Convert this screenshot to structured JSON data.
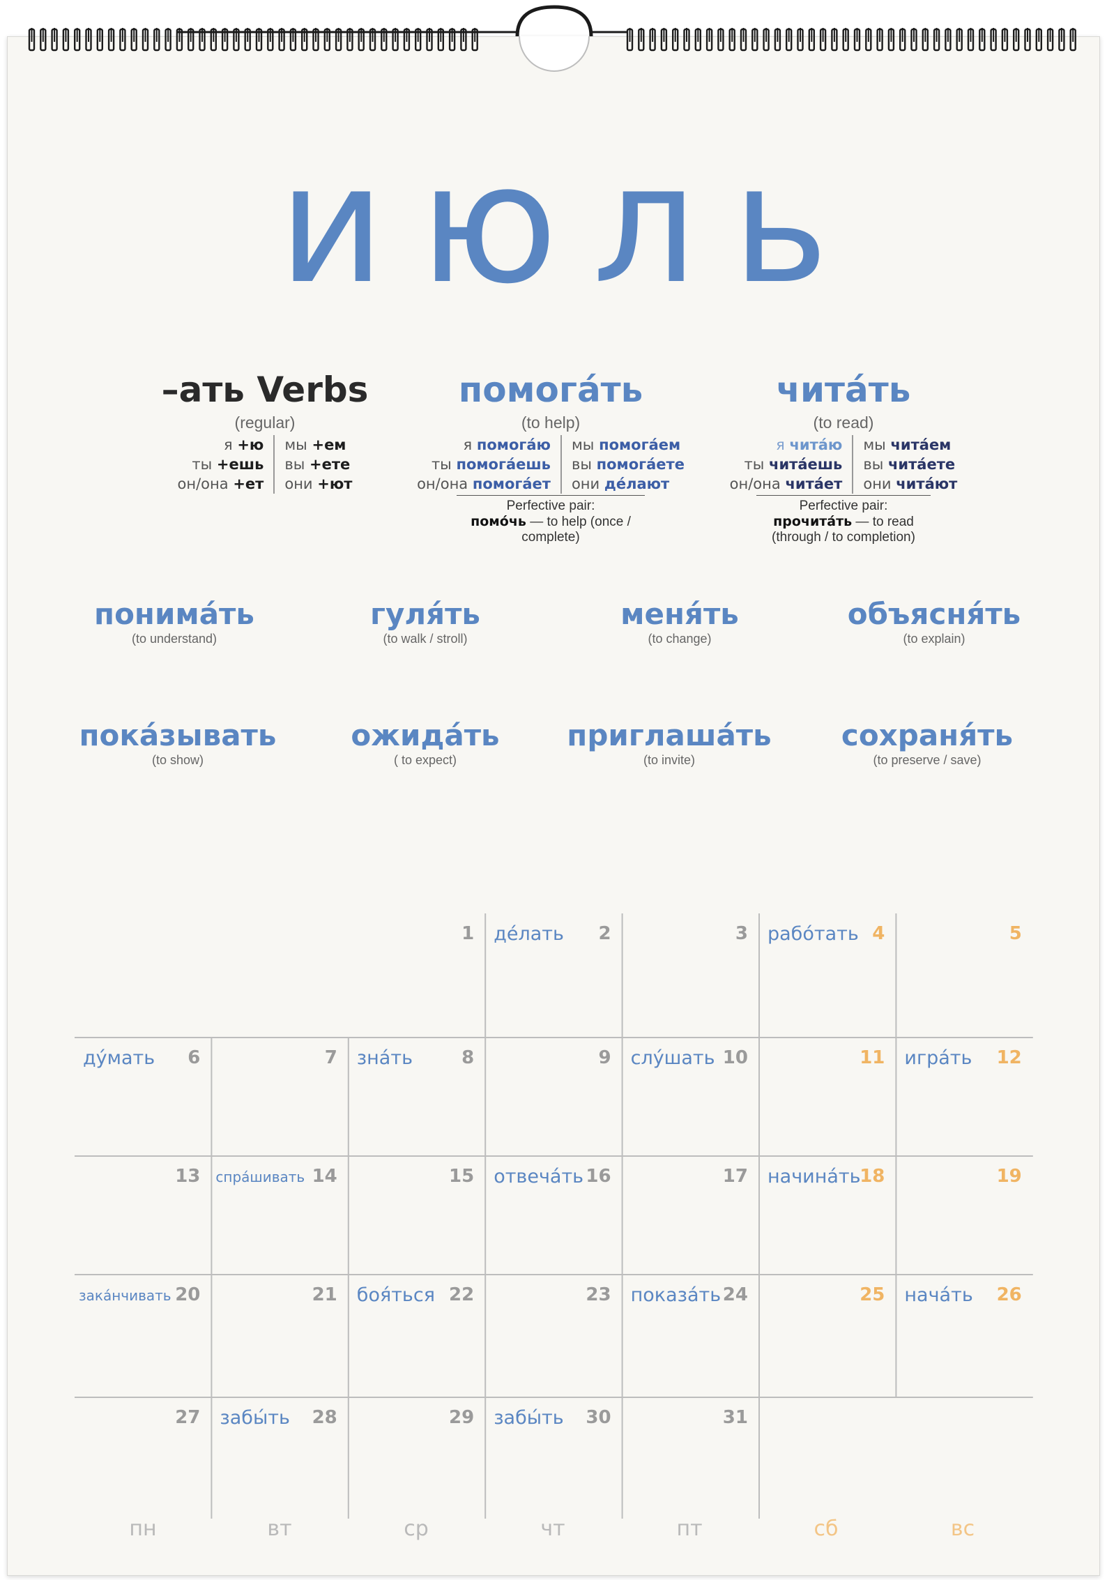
{
  "month_title": "июль",
  "colors": {
    "accent": "#5a86c2",
    "weekend": "#f0b463",
    "day_number": "#9a9a9a"
  },
  "conjugation_blocks": [
    {
      "title": "–ать Verbs",
      "subtitle": "(regular)",
      "rows": [
        {
          "sg_pron": "я",
          "sg_form": "+ю",
          "pl_pron": "мы",
          "pl_form": "+ем"
        },
        {
          "sg_pron": "ты",
          "sg_form": "+ешь",
          "pl_pron": "вы",
          "pl_form": "+ете"
        },
        {
          "sg_pron": "он/она",
          "sg_form": "+ет",
          "pl_pron": "они",
          "pl_form": "+ют"
        }
      ]
    },
    {
      "title": "помога́ть",
      "subtitle": "(to help)",
      "rows": [
        {
          "sg_pron": "я",
          "sg_form": "помога́ю",
          "pl_pron": "мы",
          "pl_form": "помога́ем"
        },
        {
          "sg_pron": "ты",
          "sg_form": "помога́ешь",
          "pl_pron": "вы",
          "pl_form": "помога́ете"
        },
        {
          "sg_pron": "он/она",
          "sg_form": "помога́ет",
          "pl_pron": "они",
          "pl_form": "де́лают"
        }
      ],
      "pair_label": "Perfective pair:",
      "pair_verb": "помо́чь",
      "pair_text": " — to help (once / complete)"
    },
    {
      "title": "чита́ть",
      "subtitle": "(to read)",
      "rows": [
        {
          "sg_pron": "я",
          "sg_form": "чита́ю",
          "pl_pron": "мы",
          "pl_form": "чита́ем"
        },
        {
          "sg_pron": "ты",
          "sg_form": "чита́ешь",
          "pl_pron": "вы",
          "pl_form": "чита́ете"
        },
        {
          "sg_pron": "он/она",
          "sg_form": "чита́ет",
          "pl_pron": "они",
          "pl_form": "чита́ют"
        }
      ],
      "pair_label": "Perfective pair:",
      "pair_verb": "прочита́ть",
      "pair_text": " — to read (through / to completion)"
    }
  ],
  "vocab": [
    {
      "verb": "понима́ть",
      "translation": "(to understand)"
    },
    {
      "verb": "гуля́ть",
      "translation": "(to walk / stroll)"
    },
    {
      "verb": "меня́ть",
      "translation": "(to change)"
    },
    {
      "verb": "объясня́ть",
      "translation": "(to explain)"
    },
    {
      "verb": "пока́зывать",
      "translation": "(to show)"
    },
    {
      "verb": "ожида́ть",
      "translation": "( to expect)"
    },
    {
      "verb": "приглаша́ть",
      "translation": "(to invite)"
    },
    {
      "verb": "сохраня́ть",
      "translation": "(to preserve / save)"
    }
  ],
  "weekdays": [
    "пн",
    "вт",
    "ср",
    "чт",
    "пт",
    "сб",
    "вс"
  ],
  "days": [
    {
      "num": "1",
      "word": ""
    },
    {
      "num": "2",
      "word": "де́лать"
    },
    {
      "num": "3",
      "word": ""
    },
    {
      "num": "4",
      "word": "рабо́тать"
    },
    {
      "num": "5",
      "word": ""
    },
    {
      "num": "6",
      "word": "ду́мать"
    },
    {
      "num": "7",
      "word": ""
    },
    {
      "num": "8",
      "word": "зна́ть"
    },
    {
      "num": "9",
      "word": ""
    },
    {
      "num": "10",
      "word": "слу́шать"
    },
    {
      "num": "11",
      "word": ""
    },
    {
      "num": "12",
      "word": "игра́ть"
    },
    {
      "num": "13",
      "word": ""
    },
    {
      "num": "14",
      "word": "спра́шивать"
    },
    {
      "num": "15",
      "word": ""
    },
    {
      "num": "16",
      "word": "отвеча́ть"
    },
    {
      "num": "17",
      "word": ""
    },
    {
      "num": "18",
      "word": "начина́ть"
    },
    {
      "num": "19",
      "word": ""
    },
    {
      "num": "20",
      "word": "зака́нчивать"
    },
    {
      "num": "21",
      "word": ""
    },
    {
      "num": "22",
      "word": "боя́ться"
    },
    {
      "num": "23",
      "word": ""
    },
    {
      "num": "24",
      "word": "показа́ть"
    },
    {
      "num": "25",
      "word": ""
    },
    {
      "num": "26",
      "word": "нача́ть"
    },
    {
      "num": "27",
      "word": ""
    },
    {
      "num": "28",
      "word": "забы́ть"
    },
    {
      "num": "29",
      "word": ""
    },
    {
      "num": "30",
      "word": "забы́ть"
    },
    {
      "num": "31",
      "word": ""
    }
  ]
}
